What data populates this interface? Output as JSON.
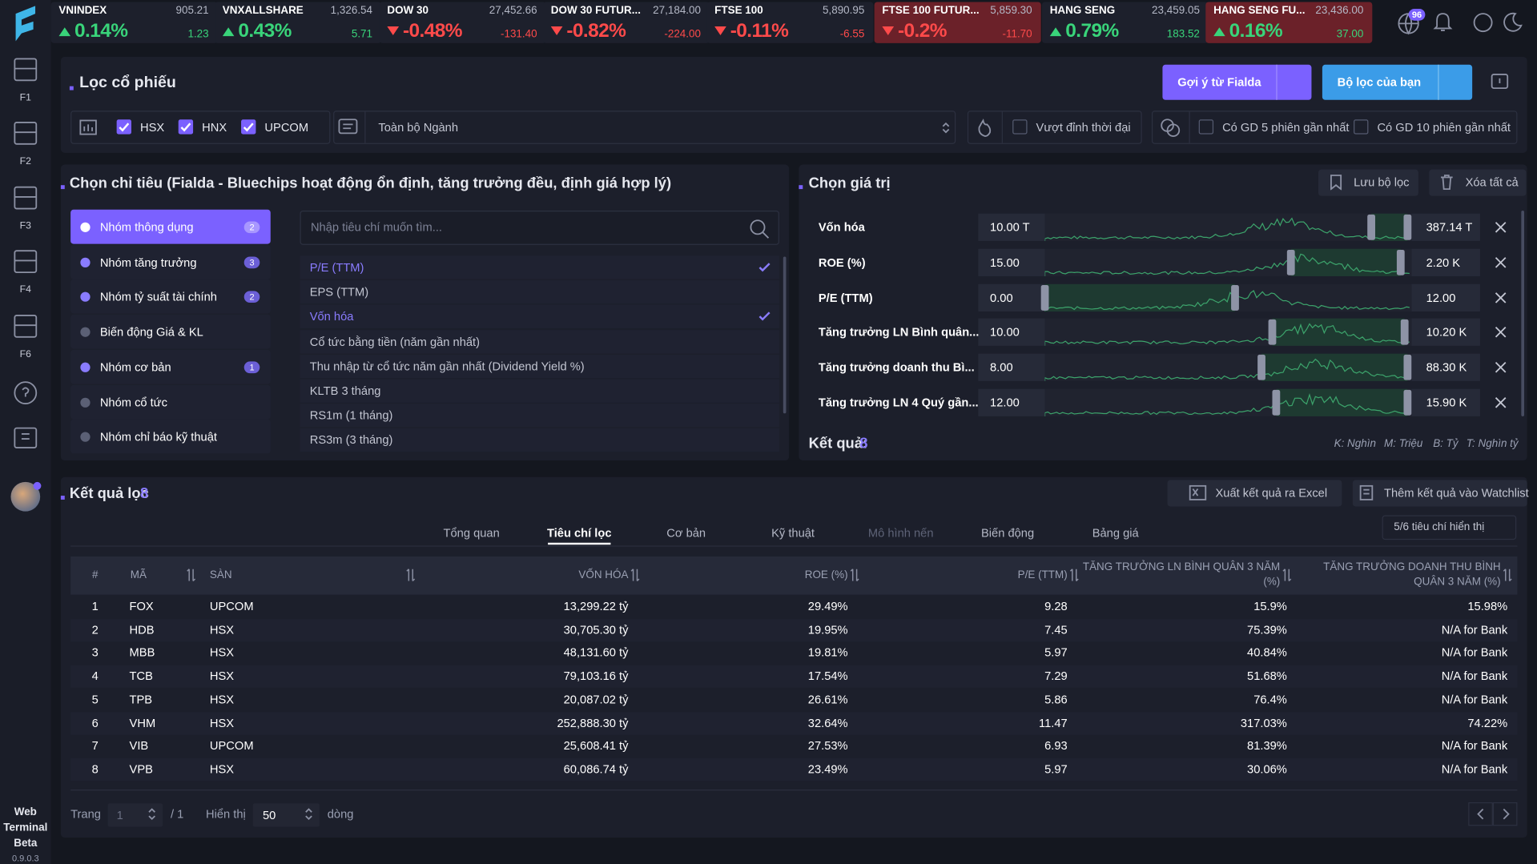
{
  "tickers": [
    {
      "name": "VNINDEX",
      "price": "905.21",
      "change_pct": "0.14%",
      "change": "1.23",
      "trend": "up"
    },
    {
      "name": "VNXALLSHARE",
      "price": "1,326.54",
      "change_pct": "0.43%",
      "change": "5.71",
      "trend": "up"
    },
    {
      "name": "DOW 30",
      "price": "27,452.66",
      "change_pct": "-0.48%",
      "change": "-131.40",
      "trend": "down"
    },
    {
      "name": "DOW 30 FUTUR...",
      "price": "27,184.00",
      "change_pct": "-0.82%",
      "change": "-224.00",
      "trend": "down"
    },
    {
      "name": "FTSE 100",
      "price": "5,890.95",
      "change_pct": "-0.11%",
      "change": "-6.55",
      "trend": "down"
    },
    {
      "name": "FTSE 100 FUTUR...",
      "price": "5,859.30",
      "change_pct": "-0.2%",
      "change": "-11.70",
      "trend": "down",
      "highlight": true
    },
    {
      "name": "HANG SENG",
      "price": "23,459.05",
      "change_pct": "0.79%",
      "change": "183.52",
      "trend": "up"
    },
    {
      "name": "HANG SENG FU...",
      "price": "23,436.00",
      "change_pct": "0.16%",
      "change": "37.00",
      "trend": "up",
      "highlight": true
    }
  ],
  "notification_count": "96",
  "sidebar": {
    "items": [
      "F1",
      "F2",
      "F3",
      "F4",
      "F6"
    ],
    "footer": [
      "Web",
      "Terminal",
      "Beta"
    ],
    "version": "0.9.0.3"
  },
  "filter": {
    "title": "Lọc cổ phiếu",
    "suggest_button": "Gợi ý từ Fialda",
    "my_filter_button": "Bộ lọc của bạn",
    "exchanges": [
      {
        "label": "HSX",
        "checked": true
      },
      {
        "label": "HNX",
        "checked": true
      },
      {
        "label": "UPCOM",
        "checked": true
      }
    ],
    "industry": "Toàn bộ Ngành",
    "options": [
      {
        "label": "Vượt đỉnh thời đại",
        "checked": false
      },
      {
        "label": "Có GD 5 phiên gần nhất",
        "checked": false
      },
      {
        "label": "Có GD 10 phiên gần nhất",
        "checked": false
      }
    ]
  },
  "criteria": {
    "title": "Chọn chỉ tiêu (Fialda - Bluechips hoạt động ổn định, tăng trưởng đều, định giá hợp lý)",
    "groups": [
      {
        "name": "Nhóm thông dụng",
        "count": "2",
        "active": true
      },
      {
        "name": "Nhóm tăng trưởng",
        "count": "3"
      },
      {
        "name": "Nhóm tỷ suất tài chính",
        "count": "2"
      },
      {
        "name": "Biến động Giá & KL"
      },
      {
        "name": "Nhóm cơ bản",
        "count": "1"
      },
      {
        "name": "Nhóm cổ tức"
      },
      {
        "name": "Nhóm chỉ báo kỹ thuật"
      }
    ],
    "search_placeholder": "Nhập tiêu chí muốn tìm...",
    "items": [
      {
        "name": "P/E (TTM)",
        "selected": true
      },
      {
        "name": "EPS (TTM)"
      },
      {
        "name": "Vốn hóa",
        "selected": true
      },
      {
        "name": "Cổ tức bằng tiền (năm gần nhất)"
      },
      {
        "name": "Thu nhập từ cổ tức năm gần nhất (Dividend Yield %)"
      },
      {
        "name": "KLTB 3 tháng"
      },
      {
        "name": "RS1m (1 tháng)"
      },
      {
        "name": "RS3m (3 tháng)"
      }
    ]
  },
  "values": {
    "title": "Chọn giá trị",
    "save_button": "Lưu bộ lọc",
    "clear_button": "Xóa tất cả",
    "rows": [
      {
        "name": "Vốn hóa",
        "min": "10.00 T",
        "max": "387.14 T"
      },
      {
        "name": "ROE (%)",
        "min": "15.00",
        "max": "2.20 K"
      },
      {
        "name": "P/E (TTM)",
        "min": "0.00",
        "max": "12.00"
      },
      {
        "name": "Tăng trưởng LN Bình quân...",
        "min": "10.00",
        "max": "10.20 K"
      },
      {
        "name": "Tăng trưởng doanh thu Bì...",
        "min": "8.00",
        "max": "88.30 K"
      },
      {
        "name": "Tăng trưởng LN 4 Quý gần...",
        "min": "12.00",
        "max": "15.90 K"
      }
    ],
    "result_label": "Kết quả:",
    "result_count": "8",
    "units": [
      "K: Nghìn",
      "M: Triệu",
      "B: Tỷ",
      "T: Nghìn tỷ"
    ]
  },
  "results": {
    "title": "Kết quả lọc",
    "count": "8",
    "export_button": "Xuất kết quả ra Excel",
    "watchlist_button": "Thêm kết quả vào Watchlist",
    "tabs": [
      {
        "label": "Tổng quan"
      },
      {
        "label": "Tiêu chí lọc",
        "active": true
      },
      {
        "label": "Cơ bản"
      },
      {
        "label": "Kỹ thuật"
      },
      {
        "label": "Mô hình nến",
        "disabled": true
      },
      {
        "label": "Biến động"
      },
      {
        "label": "Bảng giá"
      }
    ],
    "columns_shown": "5/6 tiêu chí hiển thị",
    "table": {
      "headers": [
        "#",
        "MÃ",
        "SÀN",
        "VỐN HÓA",
        "ROE (%)",
        "P/E (TTM)",
        "TĂNG TRƯỞNG LN BÌNH QUÂN 3 NĂM (%)",
        "TĂNG TRƯỞNG DOANH THU BÌNH QUÂN 3 NĂM (%)"
      ],
      "rows": [
        [
          "1",
          "FOX",
          "UPCOM",
          "13,299.22 tỷ",
          "29.49%",
          "9.28",
          "15.9%",
          "15.98%"
        ],
        [
          "2",
          "HDB",
          "HSX",
          "30,705.30 tỷ",
          "19.95%",
          "7.45",
          "75.39%",
          "N/A for Bank"
        ],
        [
          "3",
          "MBB",
          "HSX",
          "48,131.60 tỷ",
          "19.81%",
          "5.97",
          "40.84%",
          "N/A for Bank"
        ],
        [
          "4",
          "TCB",
          "HSX",
          "79,103.16 tỷ",
          "17.54%",
          "7.29",
          "51.68%",
          "N/A for Bank"
        ],
        [
          "5",
          "TPB",
          "HSX",
          "20,087.02 tỷ",
          "26.61%",
          "5.86",
          "76.4%",
          "N/A for Bank"
        ],
        [
          "6",
          "VHM",
          "HSX",
          "252,888.30 tỷ",
          "32.64%",
          "11.47",
          "317.03%",
          "74.22%"
        ],
        [
          "7",
          "VIB",
          "UPCOM",
          "25,608.41 tỷ",
          "27.53%",
          "6.93",
          "81.39%",
          "N/A for Bank"
        ],
        [
          "8",
          "VPB",
          "HSX",
          "60,086.74 tỷ",
          "23.49%",
          "5.97",
          "30.06%",
          "N/A for Bank"
        ]
      ]
    },
    "pagination": {
      "page_label": "Trang",
      "page": "1",
      "total": "/ 1",
      "show_label": "Hiển thị",
      "page_size": "50",
      "rows_label": "dòng"
    }
  }
}
